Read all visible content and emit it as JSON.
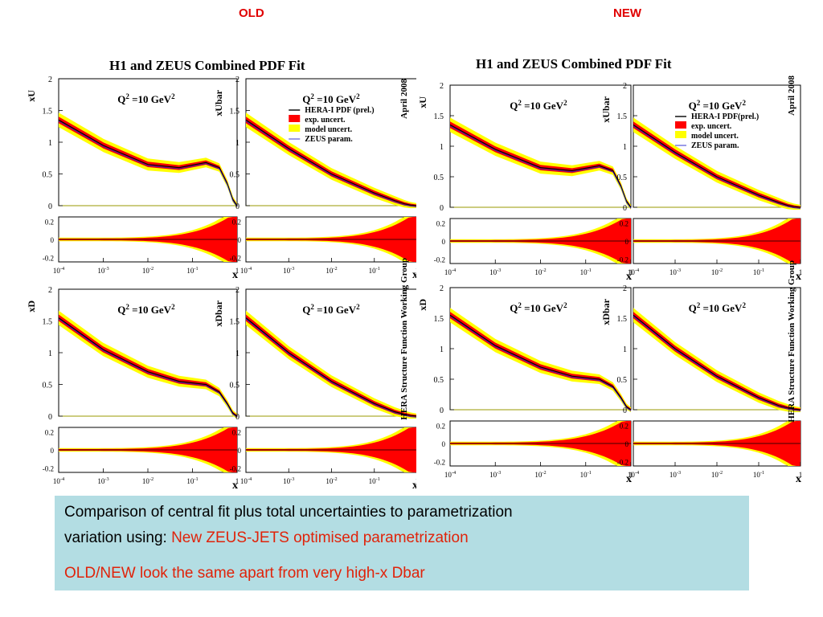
{
  "slide": {
    "old_label": "OLD",
    "new_label": "NEW",
    "caption": {
      "line1": "Comparison of central fit plus total uncertainties to parametrization",
      "line2_prefix": "variation using: ",
      "line2_highlight": "New ZEUS-JETS optimised parametrization",
      "line3": "OLD/NEW look the same apart from very high-x Dbar"
    }
  },
  "colors": {
    "exp_uncert": "#ff0000",
    "model_uncert": "#ffff00",
    "central": "#000000",
    "zeus_param": "#2222cc",
    "highlight_text": "#e0230a",
    "caption_bg": "#b3dde3"
  },
  "chart_data": [
    {
      "figure": "old",
      "type": "line",
      "title": "H1 and ZEUS Combined PDF Fit",
      "side_labels": [
        "April 2008",
        "HERA Structure Function Working Group"
      ],
      "legend": [
        "HERA-I PDF (prel.)",
        "exp. uncert.",
        "model uncert.",
        "ZEUS param."
      ],
      "x_axis": {
        "label": "x",
        "scale": "log",
        "ticks": [
          "10^-4",
          "10^-3",
          "10^-2",
          "10^-1",
          "1"
        ]
      },
      "panels": [
        {
          "ylabel": "xU",
          "annotation": "Q^2 =10 GeV^2",
          "ylim": [
            0,
            2
          ],
          "yticks": [
            "0",
            "0.5",
            "1",
            "1.5",
            "2"
          ],
          "ratio_yticks": [
            "0.2",
            "0",
            "-0.2"
          ],
          "x": [
            0.0001,
            0.001,
            0.01,
            0.05,
            0.2,
            0.4,
            0.6,
            0.8,
            1.0
          ],
          "central": [
            1.35,
            0.95,
            0.65,
            0.6,
            0.68,
            0.6,
            0.35,
            0.1,
            0.0
          ]
        },
        {
          "ylabel": "xUbar",
          "annotation": "Q^2 =10 GeV^2",
          "ylim": [
            0,
            2
          ],
          "yticks": [
            "0",
            "0.5",
            "1",
            "1.5",
            "2"
          ],
          "ratio_yticks": [
            "0.2",
            "0",
            "-0.2"
          ],
          "x": [
            0.0001,
            0.001,
            0.01,
            0.1,
            0.3,
            0.5,
            0.7,
            1.0
          ],
          "central": [
            1.35,
            0.9,
            0.5,
            0.2,
            0.08,
            0.03,
            0.01,
            0.0
          ]
        },
        {
          "ylabel": "xD",
          "annotation": "Q^2 =10 GeV^2",
          "ylim": [
            0,
            2
          ],
          "yticks": [
            "0",
            "0.5",
            "1",
            "1.5",
            "2"
          ],
          "ratio_yticks": [
            "0.2",
            "0",
            "-0.2"
          ],
          "x": [
            0.0001,
            0.001,
            0.01,
            0.05,
            0.2,
            0.4,
            0.6,
            0.8,
            1.0
          ],
          "central": [
            1.55,
            1.05,
            0.7,
            0.55,
            0.5,
            0.38,
            0.2,
            0.05,
            0.0
          ]
        },
        {
          "ylabel": "xDbar",
          "annotation": "Q^2 =10 GeV^2",
          "ylim": [
            0,
            2
          ],
          "yticks": [
            "0",
            "0.5",
            "1",
            "1.5",
            "2"
          ],
          "ratio_yticks": [
            "0.2",
            "0",
            "-0.2"
          ],
          "x": [
            0.0001,
            0.001,
            0.01,
            0.1,
            0.3,
            0.5,
            0.7,
            1.0
          ],
          "central": [
            1.55,
            1.0,
            0.55,
            0.2,
            0.07,
            0.03,
            0.01,
            0.0
          ]
        }
      ]
    },
    {
      "figure": "new",
      "type": "line",
      "title": "H1 and ZEUS Combined PDF Fit",
      "side_labels": [
        "April 2008",
        "HERA Structure Function Working Group"
      ],
      "legend": [
        "HERA-I PDF(prel.)",
        "exp. uncert.",
        "model uncert.",
        "ZEUS param."
      ],
      "x_axis": {
        "label": "x",
        "scale": "log",
        "ticks": [
          "10^-4",
          "10^-3",
          "10^-2",
          "10^-1",
          "1"
        ]
      },
      "panels": [
        {
          "ylabel": "xU",
          "annotation": "Q^2 =10 GeV^2",
          "ylim": [
            0,
            2
          ],
          "yticks": [
            "0",
            "0.5",
            "1",
            "1.5",
            "2"
          ],
          "ratio_yticks": [
            "0.2",
            "0",
            "-0.2"
          ],
          "x": [
            0.0001,
            0.001,
            0.01,
            0.05,
            0.2,
            0.4,
            0.6,
            0.8,
            1.0
          ],
          "central": [
            1.35,
            0.95,
            0.65,
            0.6,
            0.68,
            0.6,
            0.35,
            0.1,
            0.0
          ]
        },
        {
          "ylabel": "xUbar",
          "annotation": "Q^2 =10 GeV^2",
          "ylim": [
            0,
            2
          ],
          "yticks": [
            "0",
            "0.5",
            "1",
            "1.5",
            "2"
          ],
          "ratio_yticks": [
            "0.2",
            "0",
            "-0.2"
          ],
          "x": [
            0.0001,
            0.001,
            0.01,
            0.1,
            0.3,
            0.5,
            0.7,
            1.0
          ],
          "central": [
            1.35,
            0.9,
            0.5,
            0.2,
            0.08,
            0.03,
            0.01,
            0.0
          ]
        },
        {
          "ylabel": "xD",
          "annotation": "Q^2 =10 GeV^2",
          "ylim": [
            0,
            2
          ],
          "yticks": [
            "0",
            "0.5",
            "1",
            "1.5",
            "2"
          ],
          "ratio_yticks": [
            "0.2",
            "0",
            "-0.2"
          ],
          "x": [
            0.0001,
            0.001,
            0.01,
            0.05,
            0.2,
            0.4,
            0.6,
            0.8,
            1.0
          ],
          "central": [
            1.55,
            1.05,
            0.7,
            0.55,
            0.5,
            0.38,
            0.2,
            0.05,
            0.0
          ]
        },
        {
          "ylabel": "xDbar",
          "annotation": "Q^2 =10 GeV^2",
          "ylim": [
            0,
            2
          ],
          "yticks": [
            "0",
            "0.5",
            "1",
            "1.5",
            "2"
          ],
          "ratio_yticks": [
            "0.2",
            "0",
            "-0.2"
          ],
          "x": [
            0.0001,
            0.001,
            0.01,
            0.1,
            0.3,
            0.5,
            0.7,
            1.0
          ],
          "central": [
            1.55,
            1.0,
            0.55,
            0.2,
            0.07,
            0.03,
            0.01,
            0.0
          ]
        }
      ]
    }
  ]
}
